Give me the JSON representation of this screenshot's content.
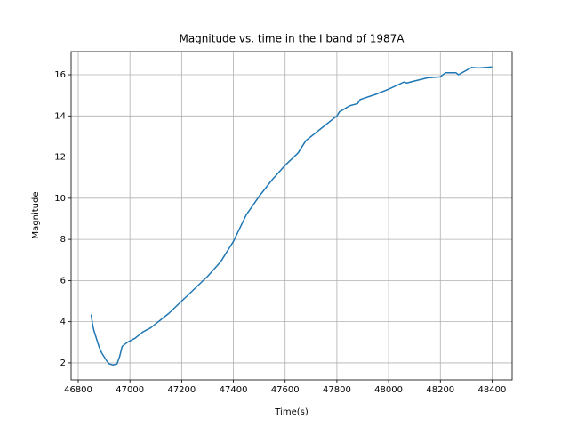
{
  "chart_data": {
    "type": "line",
    "title": "Magnitude vs. time in the I band of 1987A",
    "x_label": "Time(s)",
    "y_label": "Magnitude",
    "x": [
      46850,
      46855,
      46860,
      46870,
      46880,
      46890,
      46900,
      46910,
      46920,
      46935,
      46950,
      46960,
      46970,
      46990,
      47020,
      47050,
      47080,
      47100,
      47150,
      47200,
      47250,
      47300,
      47350,
      47400,
      47450,
      47500,
      47550,
      47600,
      47650,
      47680,
      47750,
      47800,
      47810,
      47850,
      47880,
      47890,
      47950,
      48000,
      48060,
      48070,
      48100,
      48150,
      48200,
      48220,
      48260,
      48270,
      48320,
      48350,
      48400
    ],
    "series": [
      {
        "name": "I band",
        "color": "#1f77b4",
        "values": [
          4.35,
          3.9,
          3.6,
          3.2,
          2.8,
          2.5,
          2.3,
          2.1,
          1.95,
          1.9,
          1.95,
          2.3,
          2.8,
          3.0,
          3.2,
          3.5,
          3.7,
          3.9,
          4.4,
          5.0,
          5.6,
          6.2,
          6.9,
          7.9,
          9.2,
          10.1,
          10.9,
          11.6,
          12.2,
          12.8,
          13.5,
          14.0,
          14.2,
          14.5,
          14.6,
          14.8,
          15.05,
          15.3,
          15.65,
          15.6,
          15.7,
          15.85,
          15.9,
          16.1,
          16.1,
          16.0,
          16.35,
          16.33,
          16.38
        ]
      }
    ],
    "xlim": [
      46772.5,
      48477.5
    ],
    "ylim": [
      1.175,
      17.125
    ],
    "xticks": [
      46800,
      47000,
      47200,
      47400,
      47600,
      47800,
      48000,
      48200,
      48400
    ],
    "yticks": [
      2,
      4,
      6,
      8,
      10,
      12,
      14,
      16
    ],
    "grid": true
  }
}
